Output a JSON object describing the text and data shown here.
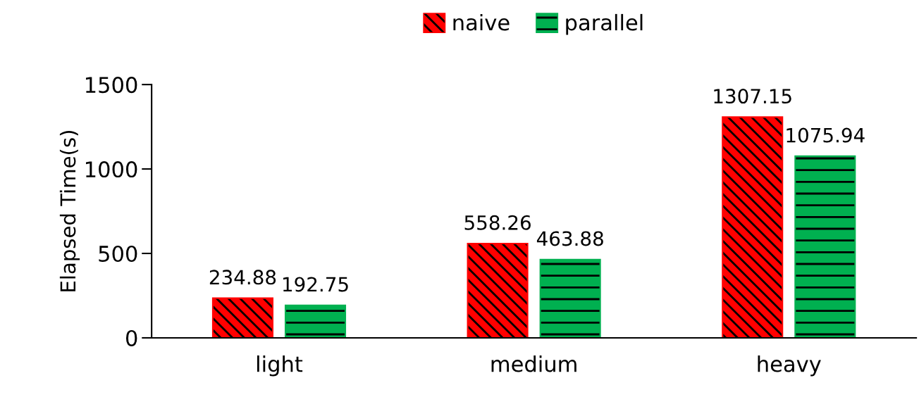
{
  "chart_data": {
    "type": "bar",
    "ylabel": "Elapsed Time(s)",
    "categories": [
      "light",
      "medium",
      "heavy"
    ],
    "series": [
      {
        "name": "naive",
        "color": "#ff0000",
        "values": [
          234.88,
          558.26,
          1307.15
        ]
      },
      {
        "name": "parallel",
        "color": "#00b050",
        "values": [
          192.75,
          463.88,
          1075.94
        ]
      }
    ],
    "ylim": [
      0,
      1500
    ],
    "yticks": [
      0,
      500,
      1000,
      1500
    ],
    "data_labels": true,
    "legend": "top",
    "grid": false
  }
}
